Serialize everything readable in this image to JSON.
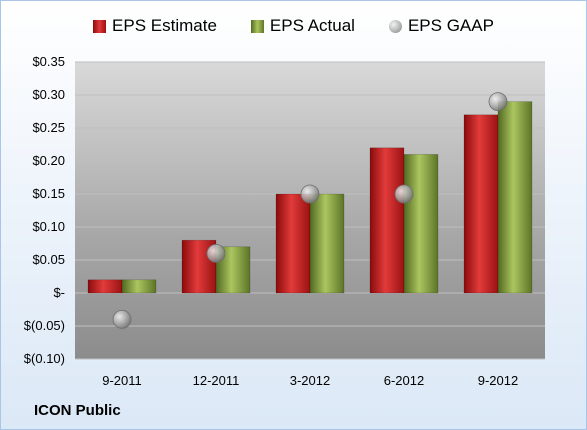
{
  "chart_data": {
    "type": "bar",
    "categories": [
      "9-2011",
      "12-2011",
      "3-2012",
      "6-2012",
      "9-2012"
    ],
    "series": [
      {
        "name": "EPS Estimate",
        "type": "bar",
        "color": "#c62828",
        "values": [
          0.02,
          0.08,
          0.15,
          0.22,
          0.27
        ]
      },
      {
        "name": "EPS Actual",
        "type": "bar",
        "color": "#8aa73f",
        "values": [
          0.02,
          0.07,
          0.15,
          0.21,
          0.29
        ]
      },
      {
        "name": "EPS GAAP",
        "type": "scatter",
        "color": "#a8a8a8",
        "values": [
          -0.04,
          0.06,
          0.15,
          0.15,
          0.29
        ]
      }
    ],
    "ylim": [
      -0.1,
      0.35
    ],
    "y_ticks": [
      {
        "value": 0.35,
        "label": "$0.35"
      },
      {
        "value": 0.3,
        "label": "$0.30"
      },
      {
        "value": 0.25,
        "label": "$0.25"
      },
      {
        "value": 0.2,
        "label": "$0.20"
      },
      {
        "value": 0.15,
        "label": "$0.15"
      },
      {
        "value": 0.1,
        "label": "$0.10"
      },
      {
        "value": 0.05,
        "label": "$0.05"
      },
      {
        "value": 0.0,
        "label": "$-"
      },
      {
        "value": -0.05,
        "label": "$(0.05)"
      },
      {
        "value": -0.1,
        "label": "$(0.10)"
      }
    ],
    "grid": true,
    "legend_position": "top"
  },
  "footer": {
    "label": "ICON Public"
  }
}
